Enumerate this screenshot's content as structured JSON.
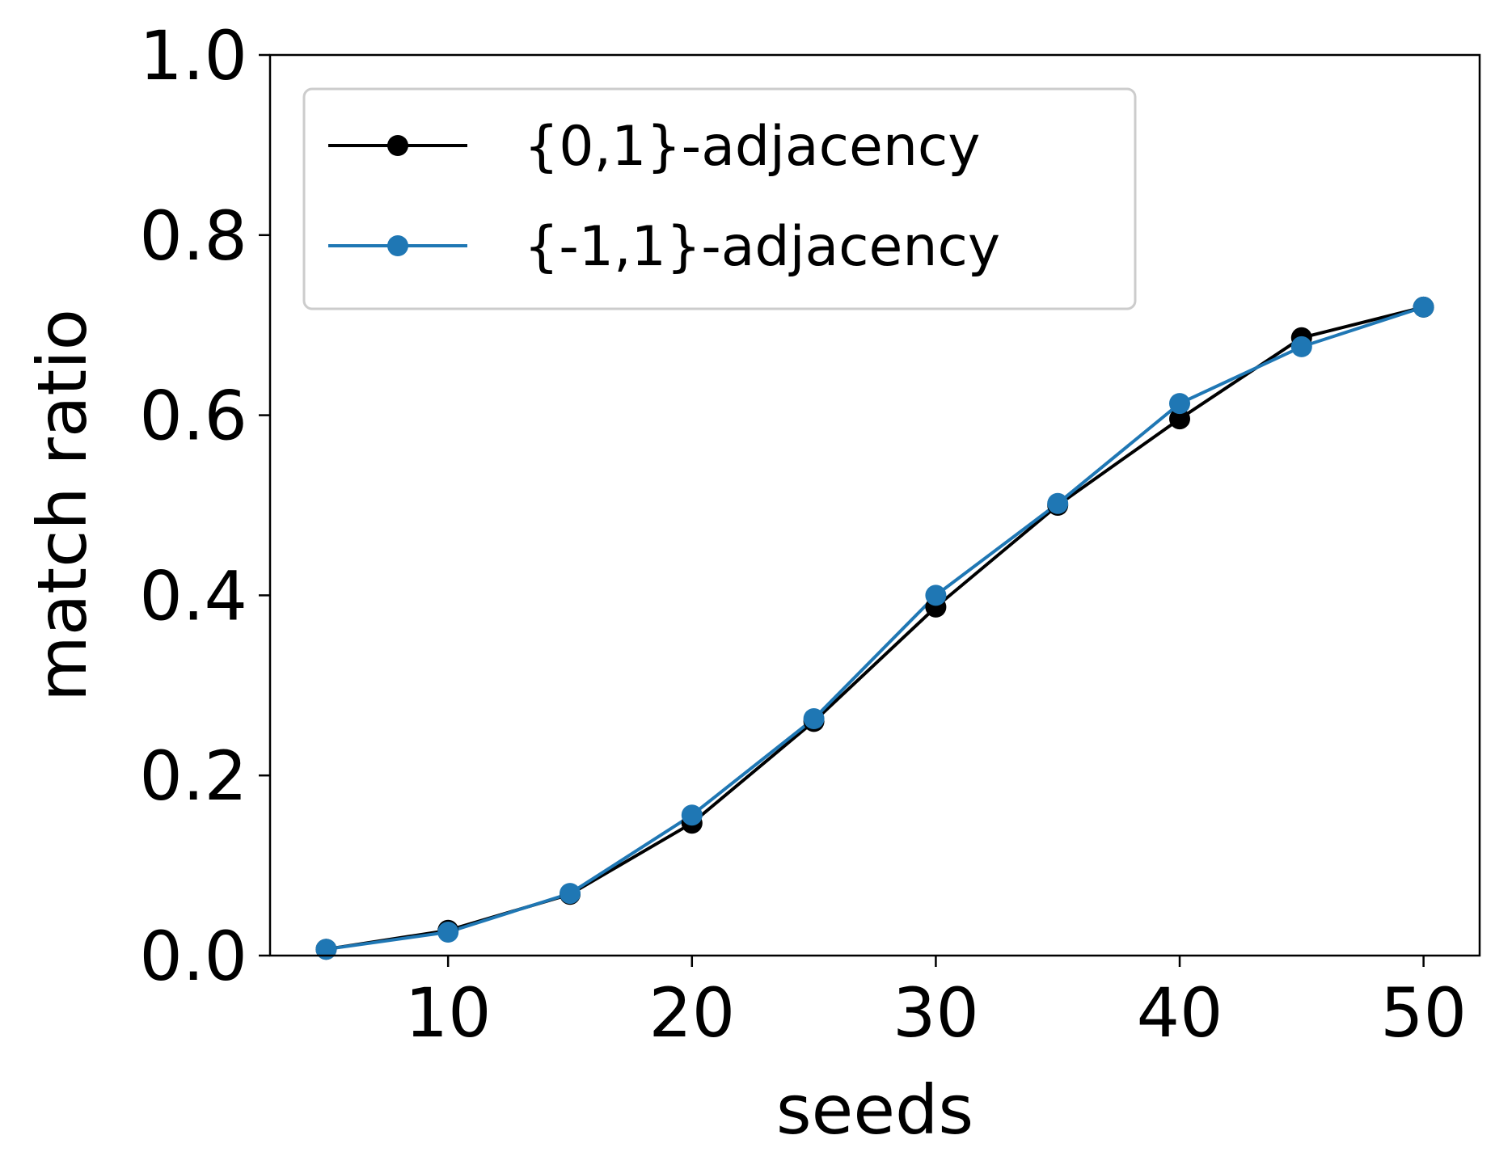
{
  "chart_data": {
    "type": "line",
    "xlabel": "seeds",
    "ylabel": "match ratio",
    "xlim": [
      2.7,
      52.3
    ],
    "ylim": [
      0.0,
      1.0
    ],
    "xticks": [
      10,
      20,
      30,
      40,
      50
    ],
    "yticks": [
      0.0,
      0.2,
      0.4,
      0.6,
      0.8,
      1.0
    ],
    "xtick_labels": [
      "10",
      "20",
      "30",
      "40",
      "50"
    ],
    "ytick_labels": [
      "0.0",
      "0.2",
      "0.4",
      "0.6",
      "0.8",
      "1.0"
    ],
    "grid": false,
    "legend_position": "upper-left",
    "x": [
      5,
      10,
      15,
      20,
      25,
      30,
      35,
      40,
      45,
      50
    ],
    "series": [
      {
        "name": "{0,1}-adjacency",
        "color": "#000000",
        "values": [
          0.007,
          0.028,
          0.068,
          0.147,
          0.26,
          0.387,
          0.5,
          0.596,
          0.686,
          0.72
        ]
      },
      {
        "name": "{-1,1}-adjacency",
        "color": "#1f77b4",
        "values": [
          0.007,
          0.026,
          0.069,
          0.156,
          0.263,
          0.4,
          0.502,
          0.613,
          0.676,
          0.72
        ]
      }
    ]
  }
}
